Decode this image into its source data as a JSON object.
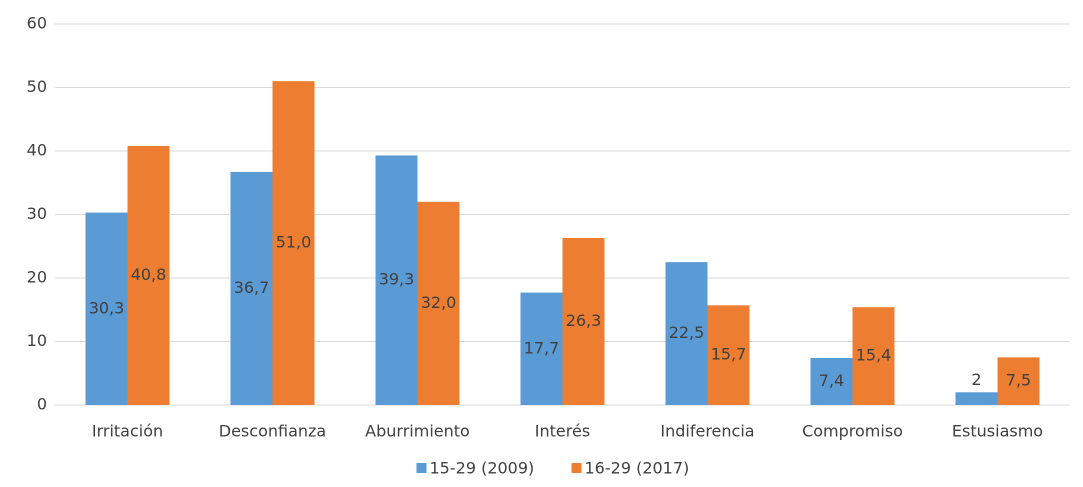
{
  "chart_data": {
    "type": "bar",
    "categories": [
      "Irritación",
      "Desconfianza",
      "Aburrimiento",
      "Interés",
      "Indiferencia",
      "Compromiso",
      "Estusiasmo"
    ],
    "series": [
      {
        "name": "15-29 (2009)",
        "color": "#5b9bd5",
        "values": [
          30.3,
          36.7,
          39.3,
          17.7,
          22.5,
          7.4,
          2
        ],
        "value_labels": [
          "30,3",
          "36,7",
          "39,3",
          "17,7",
          "22,5",
          "7,4",
          "2"
        ]
      },
      {
        "name": "16-29 (2017)",
        "color": "#ed7d31",
        "values": [
          40.8,
          51.0,
          32.0,
          26.3,
          15.7,
          15.4,
          7.5
        ],
        "value_labels": [
          "40,8",
          "51,0",
          "32,0",
          "26,3",
          "15,7",
          "15,4",
          "7,5"
        ]
      }
    ],
    "ylim": [
      0,
      60
    ],
    "yticks": [
      0,
      10,
      20,
      30,
      40,
      50,
      60
    ],
    "grid": true,
    "legend": "bottom"
  }
}
